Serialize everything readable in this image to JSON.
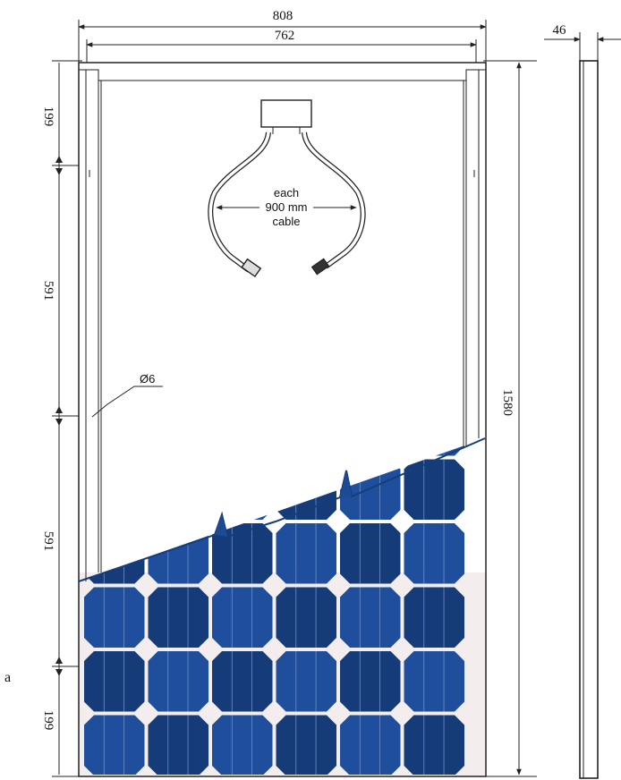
{
  "dimensions": {
    "overall_width": "808",
    "frame_inner_width": "762",
    "thickness": "46",
    "height": "1580",
    "segment_top": "199",
    "segment_upper": "591",
    "segment_lower": "591",
    "segment_bottom": "199"
  },
  "hole_label": "Ø6",
  "cable_note": {
    "line1": "each",
    "line2": "900 mm",
    "line3": "cable"
  },
  "stray_letter": "a",
  "colors": {
    "cell_blue": "#1f4f9c",
    "cell_dark": "#153b78",
    "frame": "#222222",
    "background_sheet": "#f3eded"
  },
  "icons": [
    "junction-box-icon",
    "connector-plug-icon",
    "solar-cell-grid-icon"
  ]
}
